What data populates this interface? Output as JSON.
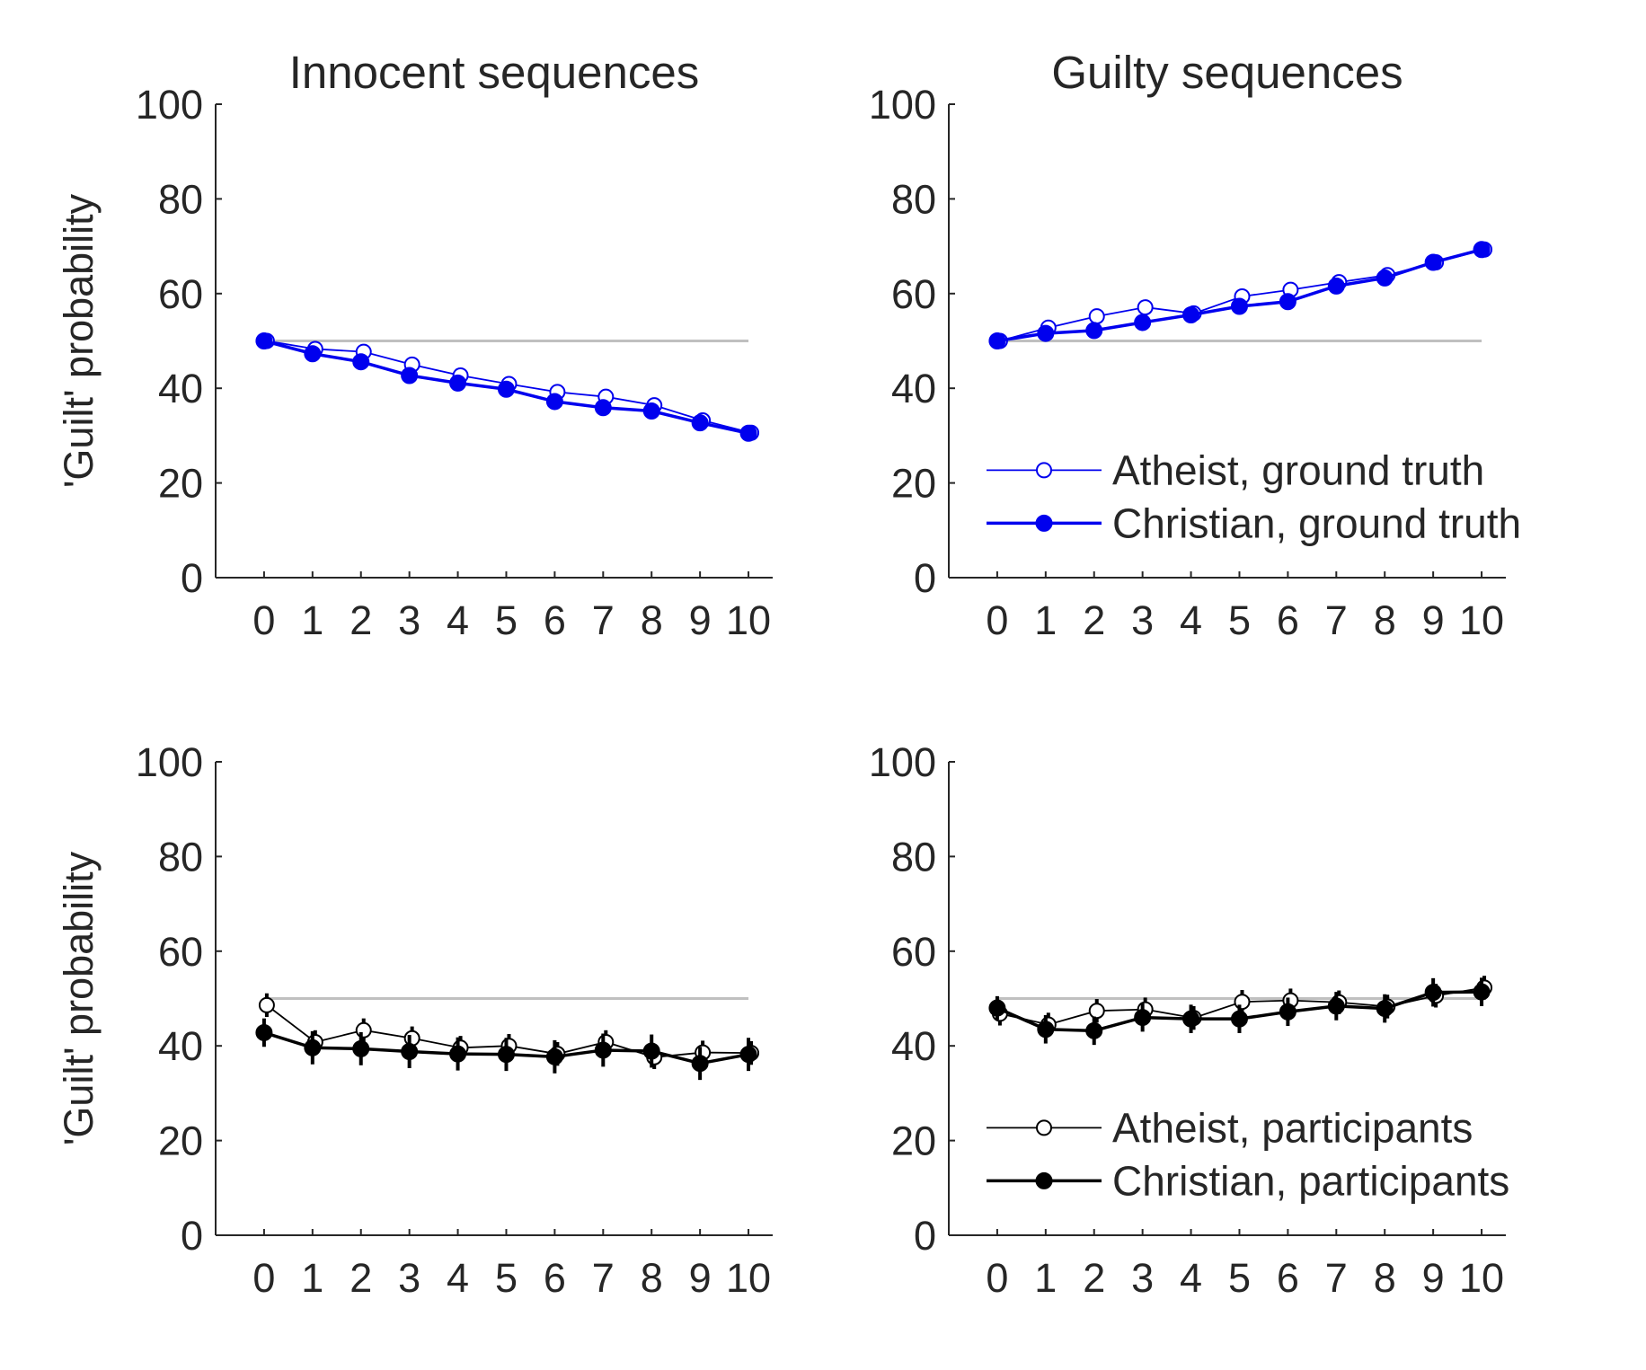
{
  "chart_data": [
    {
      "id": "innocent-model",
      "type": "line",
      "title": "Innocent sequences",
      "xlabel": "",
      "ylabel": "'Guilt' probability",
      "x": [
        0,
        1,
        2,
        3,
        4,
        5,
        6,
        7,
        8,
        9,
        10
      ],
      "xticks": [
        "0",
        "1",
        "2",
        "3",
        "4",
        "5",
        "6",
        "7",
        "8",
        "9",
        "10"
      ],
      "yticks": [
        "0",
        "20",
        "40",
        "60",
        "80",
        "100"
      ],
      "ylim": [
        0,
        100
      ],
      "reference_line": 50,
      "reference_color": "#c0c0c0",
      "grid": false,
      "legend": null,
      "series": [
        {
          "name": "Atheist, ground truth",
          "marker": "open",
          "color": "#0000ee",
          "values": [
            50,
            48.3,
            47.7,
            45,
            42.7,
            40.9,
            39.2,
            38.2,
            36.4,
            33.2,
            30.6
          ]
        },
        {
          "name": "Christian, ground truth",
          "marker": "filled",
          "color": "#0000ee",
          "values": [
            50,
            47.3,
            45.6,
            42.7,
            41.1,
            39.8,
            37.2,
            35.9,
            35.2,
            32.7,
            30.5
          ]
        }
      ]
    },
    {
      "id": "guilty-model",
      "type": "line",
      "title": "Guilty sequences",
      "xlabel": "",
      "ylabel": "",
      "x": [
        0,
        1,
        2,
        3,
        4,
        5,
        6,
        7,
        8,
        9,
        10
      ],
      "xticks": [
        "0",
        "1",
        "2",
        "3",
        "4",
        "5",
        "6",
        "7",
        "8",
        "9",
        "10"
      ],
      "yticks": [
        "0",
        "20",
        "40",
        "60",
        "80",
        "100"
      ],
      "ylim": [
        0,
        100
      ],
      "reference_line": 50,
      "reference_color": "#c0c0c0",
      "grid": false,
      "legend": "lower-right",
      "series": [
        {
          "name": "Atheist, ground truth",
          "marker": "open",
          "color": "#0000ee",
          "values": [
            50,
            52.8,
            55.2,
            57.1,
            55.8,
            59.4,
            60.8,
            62.4,
            63.9,
            66.6,
            69.3
          ]
        },
        {
          "name": "Christian, ground truth",
          "marker": "filled",
          "color": "#0000ee",
          "values": [
            50,
            51.6,
            52.2,
            53.9,
            55.5,
            57.3,
            58.3,
            61.6,
            63.3,
            66.6,
            69.3
          ]
        }
      ]
    },
    {
      "id": "innocent-participants",
      "type": "line",
      "title": "",
      "xlabel": "",
      "ylabel": "'Guilt' probability",
      "x": [
        0,
        1,
        2,
        3,
        4,
        5,
        6,
        7,
        8,
        9,
        10
      ],
      "xticks": [
        "0",
        "1",
        "2",
        "3",
        "4",
        "5",
        "6",
        "7",
        "8",
        "9",
        "10"
      ],
      "yticks": [
        "0",
        "20",
        "40",
        "60",
        "80",
        "100"
      ],
      "ylim": [
        0,
        100
      ],
      "reference_line": 50,
      "reference_color": "#c0c0c0",
      "grid": false,
      "legend": null,
      "series": [
        {
          "name": "Atheist, participants",
          "marker": "open",
          "color": "#000000",
          "values": [
            48.6,
            40.8,
            43.3,
            41.6,
            39.6,
            40.0,
            38.3,
            40.8,
            37.6,
            38.6,
            38.5
          ],
          "errors": [
            2.5,
            2.5,
            2.5,
            2.5,
            2.5,
            2.5,
            2.5,
            2.5,
            2.5,
            2.5,
            2.5
          ]
        },
        {
          "name": "Christian, participants",
          "marker": "filled",
          "color": "#000000",
          "values": [
            42.8,
            39.6,
            39.4,
            38.8,
            38.3,
            38.2,
            37.7,
            39.1,
            38.9,
            36.3,
            38.2
          ],
          "errors": [
            3.0,
            3.5,
            3.5,
            3.5,
            3.5,
            3.5,
            3.5,
            3.5,
            3.5,
            3.5,
            3.5
          ]
        }
      ]
    },
    {
      "id": "guilty-participants",
      "type": "line",
      "title": "",
      "xlabel": "",
      "ylabel": "",
      "x": [
        0,
        1,
        2,
        3,
        4,
        5,
        6,
        7,
        8,
        9,
        10
      ],
      "xticks": [
        "0",
        "1",
        "2",
        "3",
        "4",
        "5",
        "6",
        "7",
        "8",
        "9",
        "10"
      ],
      "yticks": [
        "0",
        "20",
        "40",
        "60",
        "80",
        "100"
      ],
      "ylim": [
        0,
        100
      ],
      "reference_line": 50,
      "reference_color": "#c0c0c0",
      "grid": false,
      "legend": "lower-right",
      "series": [
        {
          "name": "Atheist, participants",
          "marker": "open",
          "color": "#000000",
          "values": [
            46.8,
            44.5,
            47.4,
            47.7,
            45.9,
            49.3,
            49.6,
            49.2,
            48.3,
            50.6,
            52.3
          ],
          "errors": [
            2.5,
            2.5,
            2.5,
            2.5,
            2.5,
            2.5,
            2.5,
            2.5,
            2.5,
            2.5,
            2.5
          ]
        },
        {
          "name": "Christian, participants",
          "marker": "filled",
          "color": "#000000",
          "values": [
            48.0,
            43.5,
            43.2,
            46.0,
            45.7,
            45.7,
            47.2,
            48.4,
            47.9,
            51.3,
            51.4
          ],
          "errors": [
            2.5,
            3.0,
            3.0,
            3.0,
            3.0,
            3.0,
            3.0,
            3.0,
            3.0,
            3.0,
            3.0
          ]
        }
      ]
    }
  ]
}
